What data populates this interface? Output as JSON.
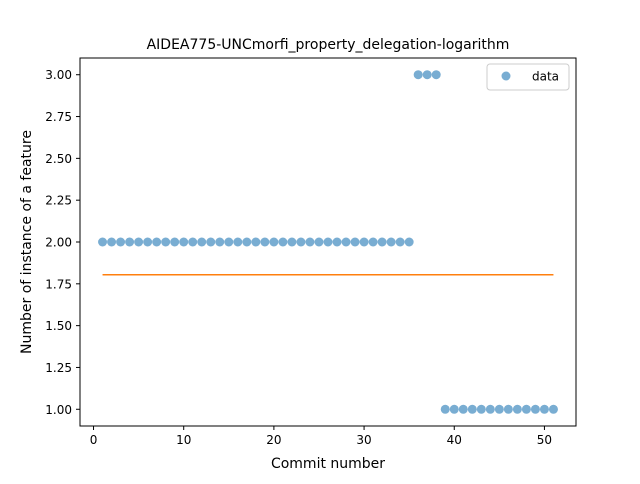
{
  "chart_data": {
    "type": "scatter",
    "title": "AIDEA775-UNCmorfi_property_delegation-logarithm",
    "xlabel": "Commit number",
    "ylabel": "Number of instance of a feature",
    "xlim": [
      -1.5,
      53.5
    ],
    "ylim": [
      0.9,
      3.1
    ],
    "xticks": [
      0,
      10,
      20,
      30,
      40,
      50
    ],
    "xtick_labels": [
      "0",
      "10",
      "20",
      "30",
      "40",
      "50"
    ],
    "yticks": [
      1.0,
      1.25,
      1.5,
      1.75,
      2.0,
      2.25,
      2.5,
      2.75,
      3.0
    ],
    "ytick_labels": [
      "1.00",
      "1.25",
      "1.50",
      "1.75",
      "2.00",
      "2.25",
      "2.50",
      "2.75",
      "3.00"
    ],
    "grid": false,
    "legend_position": "top-right",
    "series": [
      {
        "name": "data",
        "kind": "scatter",
        "color": "#1f77b4",
        "x": [
          1,
          2,
          3,
          4,
          5,
          6,
          7,
          8,
          9,
          10,
          11,
          12,
          13,
          14,
          15,
          16,
          17,
          18,
          19,
          20,
          21,
          22,
          23,
          24,
          25,
          26,
          27,
          28,
          29,
          30,
          31,
          32,
          33,
          34,
          35,
          36,
          37,
          38,
          39,
          40,
          41,
          42,
          43,
          44,
          45,
          46,
          47,
          48,
          49,
          50,
          51
        ],
        "y": [
          2,
          2,
          2,
          2,
          2,
          2,
          2,
          2,
          2,
          2,
          2,
          2,
          2,
          2,
          2,
          2,
          2,
          2,
          2,
          2,
          2,
          2,
          2,
          2,
          2,
          2,
          2,
          2,
          2,
          2,
          2,
          2,
          2,
          2,
          2,
          3,
          3,
          3,
          1,
          1,
          1,
          1,
          1,
          1,
          1,
          1,
          1,
          1,
          1,
          1,
          1
        ]
      },
      {
        "kind": "line",
        "color": "#ff7f0e",
        "x": [
          1,
          51
        ],
        "y": [
          1.804,
          1.804
        ]
      }
    ]
  }
}
